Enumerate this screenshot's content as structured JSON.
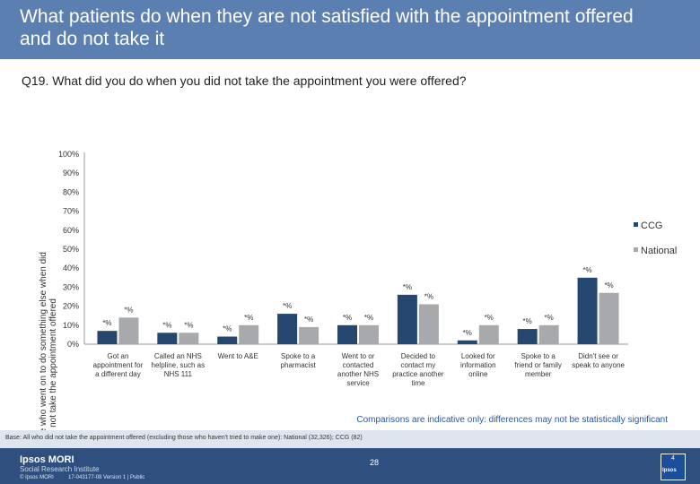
{
  "header": {
    "title": "What patients do when they are not satisfied with the appointment offered and do not take it",
    "background": "#5b7fb0"
  },
  "question": "Q19. What did you do when you did not take the appointment you were offered?",
  "chart_data": {
    "type": "bar",
    "ylabel": "Percentage who went on to do something else when did not take the appointment offered",
    "ylim": [
      0,
      100
    ],
    "yticks": [
      "100%",
      "90%",
      "80%",
      "70%",
      "60%",
      "50%",
      "40%",
      "30%",
      "20%",
      "10%",
      "0%"
    ],
    "categories": [
      [
        "Got an",
        "appointment for",
        "a different day"
      ],
      [
        "Called an NHS",
        "helpline, such as",
        "NHS 111"
      ],
      [
        "Went to A&E"
      ],
      [
        "Spoke to a",
        "pharmacist"
      ],
      [
        "Went to or",
        "contacted",
        "another NHS",
        "service"
      ],
      [
        "Decided to",
        "contact my",
        "practice another",
        "time"
      ],
      [
        "Looked for",
        "information",
        "online"
      ],
      [
        "Spoke to a",
        "friend or family",
        "member"
      ],
      [
        "Didn't see or",
        "speak to anyone"
      ]
    ],
    "series": [
      {
        "name": "CCG",
        "color": "#25476f",
        "values": [
          7,
          6,
          4,
          16,
          10,
          26,
          2,
          8,
          35
        ],
        "labels": [
          "*%",
          "*%",
          "*%",
          "*%",
          "*%",
          "*%",
          "*%",
          "*%",
          "*%"
        ]
      },
      {
        "name": "National",
        "color": "#a7a9ac",
        "values": [
          14,
          6,
          10,
          9,
          10,
          21,
          10,
          10,
          27
        ],
        "labels": [
          "*%",
          "*%",
          "*%",
          "*%",
          "*%",
          "*%",
          "*%",
          "*%",
          "*%"
        ]
      }
    ],
    "legend_position": "right"
  },
  "note": "Comparisons are indicative only: differences may not be statistically significant",
  "base": "Base: All who did not take the appointment offered (excluding those who haven't tried to make one): National (32,326); CCG (82)",
  "footer": {
    "logo_line1": "Ipsos MORI",
    "logo_line2": "Social Research Institute",
    "copyright": "© Ipsos MORI",
    "ref": "17-043177-08 Version 1 | Public",
    "page_number": "28",
    "badge_label": "Ipsos",
    "badge_number": "4"
  }
}
